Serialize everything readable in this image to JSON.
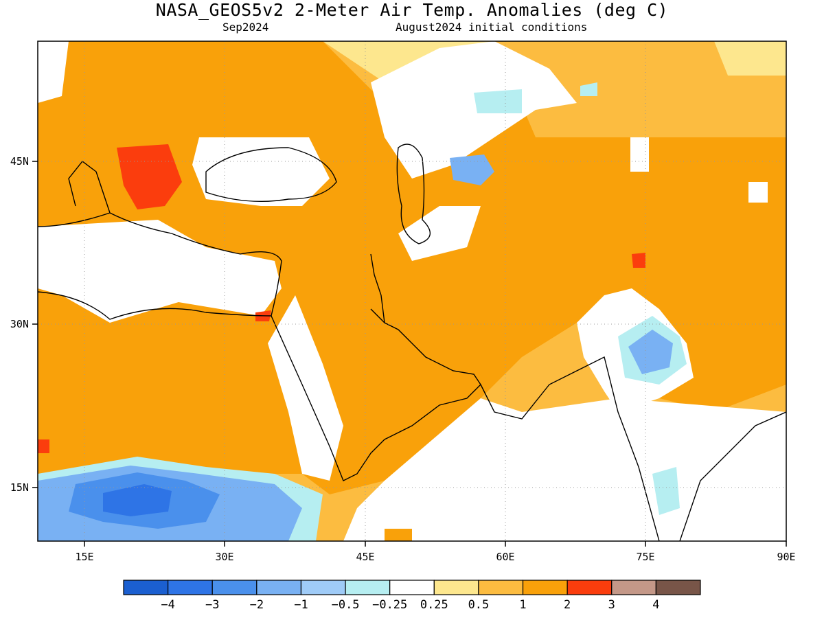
{
  "title": "NASA_GEOS5v2 2-Meter Air Temp. Anomalies (deg C)",
  "subtitle_left": "Sep2024",
  "subtitle_right": "August2024 initial conditions",
  "lon_ticks": [
    "15E",
    "30E",
    "45E",
    "60E",
    "75E",
    "90E"
  ],
  "lat_ticks": [
    "45N",
    "30N",
    "15N"
  ],
  "colorbar": {
    "colors": [
      "#1b5fd0",
      "#2e74e6",
      "#4a90ec",
      "#79b1f3",
      "#9fcbf7",
      "#b6eef1",
      "#ffffff",
      "#fde78e",
      "#fcbc40",
      "#f9a10a",
      "#fb3d0d",
      "#c49888",
      "#785548"
    ],
    "labels": [
      "-4",
      "-3",
      "-2",
      "-1",
      "-0.5",
      "-0.25",
      "0.25",
      "0.5",
      "1",
      "2",
      "3",
      "4"
    ]
  }
}
